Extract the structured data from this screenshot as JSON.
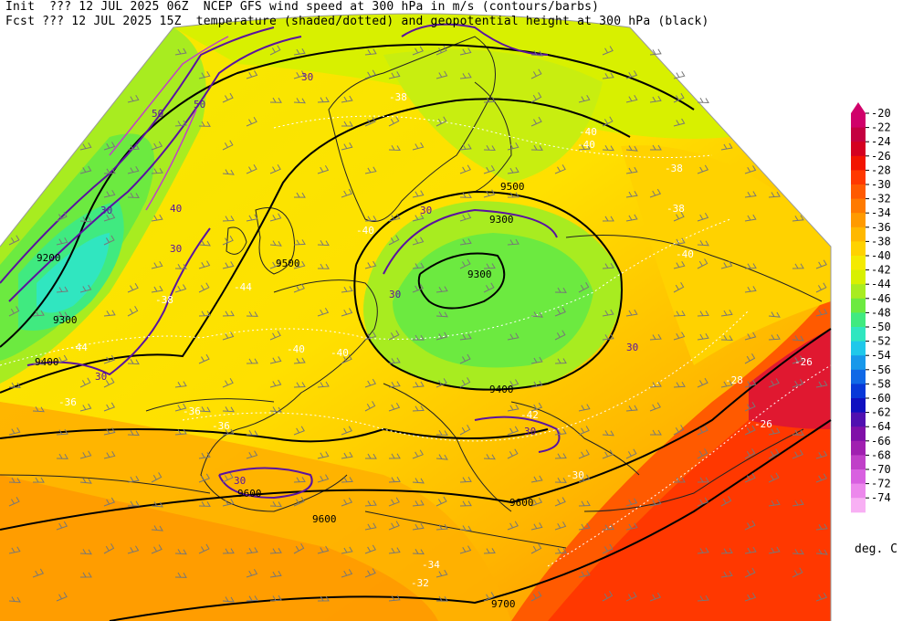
{
  "header": {
    "line1": "Init  ??? 12 JUL 2025 06Z  NCEP GFS wind speed at 300 hPa in m/s (contours/barbs)",
    "line2": "Fcst ??? 12 JUL 2025 15Z  temperature (shaded/dotted) and geopotential height at 300 hPa (black)"
  },
  "legend": {
    "unit": "deg. C",
    "levels": [
      "-20",
      "-22",
      "-24",
      "-26",
      "-28",
      "-30",
      "-32",
      "-34",
      "-36",
      "-38",
      "-40",
      "-42",
      "-44",
      "-46",
      "-48",
      "-50",
      "-52",
      "-54",
      "-56",
      "-58",
      "-60",
      "-62",
      "-64",
      "-66",
      "-68",
      "-70",
      "-72",
      "-74"
    ],
    "colors": [
      "#d0006a",
      "#c40040",
      "#d40020",
      "#f21400",
      "#ff3800",
      "#ff5a00",
      "#ff7a00",
      "#ff9a00",
      "#ffb800",
      "#ffd200",
      "#f4ea00",
      "#d8f000",
      "#a8ec20",
      "#6cea40",
      "#40ea80",
      "#30e6c0",
      "#20c8ea",
      "#1898ea",
      "#1068e6",
      "#0838d8",
      "#1010c0",
      "#5010b0",
      "#8010a8",
      "#a020b0",
      "#c040c8",
      "#d860e0",
      "#ec88ec",
      "#f8b0f4"
    ]
  },
  "map_labels": {
    "height": [
      "9200",
      "9300",
      "9300",
      "9400",
      "9500",
      "9500",
      "9600",
      "9600",
      "9600",
      "9700",
      "9300",
      "9400"
    ],
    "wind": [
      "30",
      "30",
      "30",
      "30",
      "30",
      "40",
      "50",
      "50",
      "30",
      "30",
      "30",
      "30"
    ],
    "temp": [
      "-38",
      "-40",
      "-40",
      "-40",
      "-40",
      "-44",
      "-44",
      "-36",
      "-38",
      "-36",
      "-36",
      "-34",
      "-32",
      "-26",
      "-26",
      "-28",
      "-30",
      "-38",
      "-38",
      "-40",
      "-42",
      "-40"
    ]
  }
}
